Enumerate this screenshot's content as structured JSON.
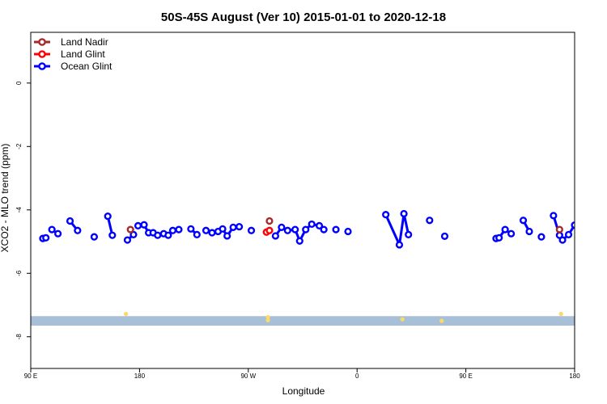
{
  "chart_data": {
    "type": "line",
    "title": "50S-45S August (Ver 10)   2015-01-01 to 2020-12-18",
    "xlabel": "Longitude",
    "ylabel": "XCO2 - MLO trend (ppm)",
    "xlim": [
      90,
      450
    ],
    "ylim": [
      -9,
      1.6
    ],
    "x_ticks": [
      {
        "value": 90,
        "label": "90 E"
      },
      {
        "value": 162,
        "label": "180"
      },
      {
        "value": 234,
        "label": "90 W"
      },
      {
        "value": 306,
        "label": "0"
      },
      {
        "value": 378,
        "label": "90 E"
      },
      {
        "value": 450,
        "label": "180"
      }
    ],
    "y_ticks": [
      {
        "value": 0,
        "label": "0"
      },
      {
        "value": -2,
        "label": "-2"
      },
      {
        "value": -4,
        "label": "-4"
      },
      {
        "value": -6,
        "label": "-6"
      },
      {
        "value": -8,
        "label": "-8"
      }
    ],
    "legend_position": "top-left",
    "series": [
      {
        "name": "Land Nadir",
        "color": "#a52a2a",
        "segments": [
          [
            [
              156,
              -4.62
            ]
          ],
          [
            [
              248,
              -4.35
            ]
          ],
          [
            [
              440,
              -4.62
            ]
          ]
        ]
      },
      {
        "name": "Land Glint",
        "color": "#ff0000",
        "segments": [
          [
            [
              246,
              -4.7
            ],
            [
              248,
              -4.65
            ]
          ]
        ]
      },
      {
        "name": "Ocean Glint",
        "color": "#0000ff",
        "segments": [
          [
            [
              98,
              -4.9
            ],
            [
              100,
              -4.88
            ]
          ],
          [
            [
              104,
              -4.62
            ],
            [
              108,
              -4.75
            ]
          ],
          [
            [
              116,
              -4.35
            ],
            [
              121,
              -4.65
            ]
          ],
          [
            [
              132,
              -4.85
            ]
          ],
          [
            [
              141,
              -4.2
            ],
            [
              144,
              -4.8
            ]
          ],
          [
            [
              154,
              -4.95
            ],
            [
              158,
              -4.78
            ]
          ],
          [
            [
              161,
              -4.5
            ],
            [
              165,
              -4.47
            ],
            [
              168,
              -4.72
            ],
            [
              171,
              -4.72
            ],
            [
              174,
              -4.8
            ],
            [
              178,
              -4.75
            ],
            [
              181,
              -4.8
            ],
            [
              184,
              -4.65
            ],
            [
              188,
              -4.62
            ]
          ],
          [
            [
              196,
              -4.6
            ],
            [
              200,
              -4.78
            ]
          ],
          [
            [
              206,
              -4.65
            ],
            [
              210,
              -4.72
            ],
            [
              214,
              -4.68
            ],
            [
              217,
              -4.6
            ],
            [
              220,
              -4.82
            ],
            [
              224,
              -4.55
            ],
            [
              228,
              -4.53
            ]
          ],
          [
            [
              236,
              -4.65
            ]
          ],
          [
            [
              252,
              -4.82
            ],
            [
              256,
              -4.55
            ],
            [
              260,
              -4.65
            ],
            [
              265,
              -4.62
            ],
            [
              268,
              -4.98
            ],
            [
              272,
              -4.62
            ],
            [
              276,
              -4.45
            ],
            [
              281,
              -4.5
            ],
            [
              284,
              -4.62
            ]
          ],
          [
            [
              292,
              -4.62
            ]
          ],
          [
            [
              300,
              -4.68
            ]
          ],
          [
            [
              325,
              -4.15
            ],
            [
              334,
              -5.1
            ],
            [
              337,
              -4.12
            ],
            [
              340,
              -4.78
            ]
          ],
          [
            [
              354,
              -4.33
            ]
          ],
          [
            [
              364,
              -4.83
            ]
          ],
          [
            [
              398,
              -4.9
            ],
            [
              400,
              -4.88
            ],
            [
              404,
              -4.62
            ],
            [
              408,
              -4.75
            ]
          ],
          [
            [
              416,
              -4.33
            ],
            [
              420,
              -4.68
            ]
          ],
          [
            [
              428,
              -4.85
            ]
          ],
          [
            [
              436,
              -4.18
            ],
            [
              440,
              -4.8
            ]
          ],
          [
            [
              442,
              -4.95
            ],
            [
              446,
              -4.78
            ],
            [
              450,
              -4.48
            ]
          ]
        ]
      }
    ],
    "band": {
      "y_top": -7.35,
      "y_bottom": -7.65,
      "color": "#a8bfd8"
    },
    "highlights": {
      "color": "#ffd966",
      "points": [
        [
          153,
          -7.28
        ],
        [
          247,
          -7.48
        ],
        [
          247,
          -7.38
        ],
        [
          441,
          -7.28
        ],
        [
          336,
          -7.45
        ],
        [
          362,
          -7.5
        ]
      ]
    }
  }
}
